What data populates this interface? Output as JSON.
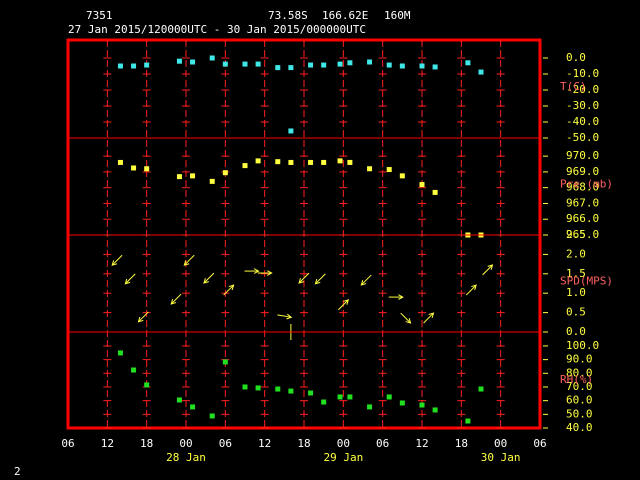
{
  "header": {
    "station": "7351",
    "latitude": "73.58S",
    "longitude": "166.62E",
    "elevation": "160M",
    "period": "27 Jan 2015/120000UTC - 30 Jan 2015/000000UTC",
    "page_number": "2"
  },
  "chart_data": [
    {
      "type": "scatter",
      "ylabel": "T(C)",
      "color": "#40e8e8",
      "x": [
        8,
        10,
        12,
        17,
        19,
        22,
        24,
        27,
        29,
        32,
        34,
        34,
        37,
        39,
        41.5,
        43,
        46,
        49,
        51,
        54,
        56,
        61,
        63
      ],
      "values": [
        -5,
        -5,
        -4.4,
        -2,
        -2.5,
        0,
        -3.8,
        -3.8,
        -3.8,
        -6,
        -6,
        -45.6,
        -4.4,
        -4.4,
        -3.8,
        -3,
        -2.5,
        -4.4,
        -5,
        -5,
        -5.6,
        -3,
        -8.8
      ],
      "ylim": [
        -50,
        11.25
      ],
      "yticks": [
        {
          "value": 0,
          "label": "0.0"
        },
        {
          "value": -10,
          "label": "-10.0"
        },
        {
          "value": -20,
          "label": "-20.0"
        },
        {
          "value": -30,
          "label": "-30.0"
        },
        {
          "value": -40,
          "label": "-40.0"
        },
        {
          "value": -50,
          "label": "-50.0"
        }
      ]
    },
    {
      "type": "scatter",
      "ylabel": "Pre (mb)",
      "color": "#ffff40",
      "x": [
        8,
        10,
        12,
        17,
        19,
        22,
        24,
        27,
        29,
        32,
        34,
        37,
        39,
        41.5,
        43,
        46,
        49,
        51,
        54,
        56,
        61,
        63
      ],
      "values": [
        969.6,
        969.25,
        969.2,
        968.7,
        968.75,
        968.4,
        968.95,
        969.4,
        969.7,
        969.65,
        969.6,
        969.6,
        969.6,
        969.7,
        969.6,
        969.2,
        969.15,
        968.75,
        968.2,
        967.7,
        965,
        965
      ],
      "ylim": [
        965,
        971.15
      ],
      "yticks": [
        {
          "value": 970,
          "label": "970.0"
        },
        {
          "value": 969,
          "label": "969.0"
        },
        {
          "value": 968,
          "label": "968.0"
        },
        {
          "value": 967,
          "label": "967.0"
        },
        {
          "value": 966,
          "label": "966.0"
        },
        {
          "value": 965,
          "label": "965.0"
        }
      ]
    },
    {
      "type": "vector",
      "ylabel": "SPD(MPS)",
      "color": "#ffff40",
      "x": [
        7.5,
        9.5,
        11.5,
        16.5,
        18.5,
        21.5,
        24.5,
        28,
        30,
        33,
        34,
        36,
        38.5,
        42,
        45.5,
        50,
        51.5,
        55,
        61.5,
        64
      ],
      "values": [
        1.85,
        1.37,
        0.39,
        0.85,
        1.85,
        1.39,
        1.08,
        1.57,
        1.52,
        0.41,
        0,
        1.39,
        1.37,
        0.7,
        1.34,
        0.9,
        0.36,
        0.36,
        1.08,
        1.6
      ],
      "directions": [
        225,
        225,
        225,
        225,
        225,
        225,
        45,
        90,
        90,
        100,
        0,
        225,
        225,
        45,
        225,
        90,
        135,
        45,
        45,
        45
      ],
      "ylim": [
        0,
        2.5
      ],
      "yticks": [
        2.5,
        {
          "value": 2,
          "label": "2.0"
        },
        1.5,
        {
          "value": 1,
          "label": "1.0"
        },
        0.5,
        {
          "value": 0,
          "label": "0.0"
        }
      ]
    },
    {
      "type": "scatter",
      "ylabel": "RH(%)",
      "color": "#20e020",
      "x": [
        8,
        10,
        12,
        17,
        19,
        22,
        24,
        27,
        29,
        32,
        34,
        37,
        39,
        41.5,
        43,
        46,
        49,
        51,
        54,
        56,
        61,
        63
      ],
      "values": [
        94.9,
        82.4,
        71.5,
        60.5,
        55.4,
        48.8,
        88.3,
        70,
        69.3,
        68.5,
        67,
        65.6,
        59,
        62.7,
        62.7,
        55.4,
        62.7,
        58.3,
        56.8,
        53.2,
        45.1,
        68.5
      ],
      "ylim": [
        40,
        110.2
      ],
      "yticks": [
        {
          "value": 100,
          "label": "100.0"
        },
        {
          "value": 90,
          "label": "90.0"
        },
        {
          "value": 80,
          "label": "80.0"
        },
        {
          "value": 70,
          "label": "70.0"
        },
        {
          "value": 60,
          "label": "60.0"
        },
        {
          "value": 50,
          "label": "50.0"
        },
        {
          "value": 40,
          "label": "40.0"
        }
      ],
      "xlim": [
        0,
        72
      ],
      "xticks": [
        {
          "value": 0,
          "label": "06"
        },
        {
          "value": 6,
          "label": "12"
        },
        {
          "value": 12,
          "label": "18"
        },
        {
          "value": 18,
          "label": "00"
        },
        {
          "value": 24,
          "label": "06"
        },
        {
          "value": 30,
          "label": "12"
        },
        {
          "value": 36,
          "label": "18"
        },
        {
          "value": 42,
          "label": "00"
        },
        {
          "value": 48,
          "label": "06"
        },
        {
          "value": 54,
          "label": "12"
        },
        {
          "value": 60,
          "label": "18"
        },
        {
          "value": 66,
          "label": "00"
        },
        {
          "value": 72,
          "label": "06"
        }
      ],
      "date_labels": [
        {
          "value": 18,
          "label": "28 Jan"
        },
        {
          "value": 42,
          "label": "29 Jan"
        },
        {
          "value": 66,
          "label": "30 Jan"
        }
      ]
    }
  ]
}
